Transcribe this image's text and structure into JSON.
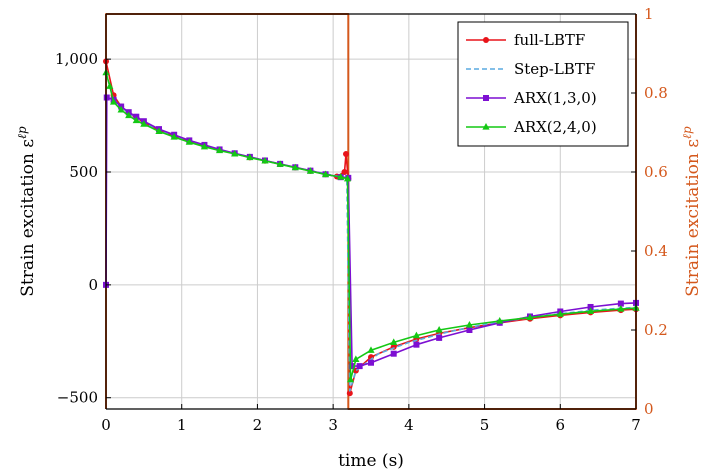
{
  "chart_data": {
    "type": "line",
    "xlabel": "time (s)",
    "ylabel_left": "Strain excitation ε",
    "ylabel_left_sup": "ℓp",
    "ylabel_right": "Strain excitation ε",
    "ylabel_right_sup": "ℓp",
    "xlim": [
      0,
      7
    ],
    "ylim_left": [
      -550,
      1200
    ],
    "ylim_right": [
      0,
      1
    ],
    "x_ticks": [
      0,
      1,
      2,
      3,
      4,
      5,
      6,
      7
    ],
    "x_tick_labels": [
      "0",
      "1",
      "2",
      "3",
      "4",
      "5",
      "6",
      "7"
    ],
    "y_ticks_left": [
      -500,
      0,
      500,
      1000
    ],
    "y_tick_labels_left": [
      "−500",
      "0",
      "500",
      "1,000"
    ],
    "y_ticks_right": [
      0,
      0.2,
      0.4,
      0.6,
      0.8,
      1
    ],
    "y_tick_labels_right": [
      "0",
      "0.2",
      "0.4",
      "0.6",
      "0.8",
      "1"
    ],
    "grid": true,
    "legend_position": "top-right",
    "series": [
      {
        "name": "full-LBTF",
        "color": "#e8141a",
        "marker": "circle",
        "axis": "left",
        "x": [
          0,
          0.1,
          0.2,
          0.3,
          0.4,
          0.5,
          0.7,
          0.9,
          1.1,
          1.3,
          1.5,
          1.7,
          1.9,
          2.1,
          2.3,
          2.5,
          2.7,
          2.9,
          3.05,
          3.15,
          3.17,
          3.2,
          3.22,
          3.3,
          3.5,
          3.8,
          4.1,
          4.4,
          4.8,
          5.2,
          5.6,
          6.0,
          6.4,
          6.8,
          7.0
        ],
        "y": [
          990,
          840,
          790,
          760,
          740,
          720,
          685,
          660,
          635,
          615,
          598,
          582,
          565,
          550,
          535,
          520,
          505,
          490,
          480,
          500,
          580,
          470,
          -480,
          -380,
          -320,
          -275,
          -240,
          -215,
          -190,
          -168,
          -150,
          -135,
          -122,
          -112,
          -108
        ]
      },
      {
        "name": "Step-LBTF",
        "color": "#5aaae0",
        "marker": "none",
        "dashed": true,
        "axis": "left",
        "x": [
          0,
          0.1,
          0.3,
          0.6,
          1.0,
          1.5,
          2.0,
          2.5,
          3.0,
          3.18,
          3.22,
          3.3,
          3.6,
          4.0,
          4.5,
          5.0,
          5.5,
          6.0,
          6.5,
          7.0
        ],
        "y": [
          940,
          820,
          760,
          700,
          650,
          598,
          557,
          520,
          485,
          475,
          -470,
          -380,
          -305,
          -255,
          -210,
          -175,
          -150,
          -128,
          -110,
          -100
        ]
      },
      {
        "name": "ARX(1,3,0)",
        "color": "#7d0fd2",
        "marker": "square",
        "axis": "left",
        "x": [
          0,
          0.01,
          0.1,
          0.2,
          0.3,
          0.4,
          0.5,
          0.7,
          0.9,
          1.1,
          1.3,
          1.5,
          1.7,
          1.9,
          2.1,
          2.3,
          2.5,
          2.7,
          2.9,
          3.1,
          3.2,
          3.25,
          3.35,
          3.5,
          3.8,
          4.1,
          4.4,
          4.8,
          5.2,
          5.6,
          6.0,
          6.4,
          6.8,
          7.0
        ],
        "y": [
          0,
          830,
          820,
          790,
          765,
          745,
          725,
          690,
          665,
          640,
          620,
          600,
          583,
          567,
          551,
          536,
          521,
          506,
          490,
          477,
          474,
          -360,
          -360,
          -345,
          -305,
          -265,
          -235,
          -200,
          -168,
          -140,
          -118,
          -98,
          -83,
          -80
        ]
      },
      {
        "name": "ARX(2,4,0)",
        "color": "#14c814",
        "marker": "triangle",
        "axis": "left",
        "x": [
          0,
          0.05,
          0.1,
          0.2,
          0.3,
          0.4,
          0.5,
          0.7,
          0.9,
          1.1,
          1.3,
          1.5,
          1.7,
          1.9,
          2.1,
          2.3,
          2.5,
          2.7,
          2.9,
          3.1,
          3.19,
          3.23,
          3.3,
          3.5,
          3.8,
          4.1,
          4.4,
          4.8,
          5.2,
          5.6,
          6.0,
          6.4,
          6.8,
          7.0
        ],
        "y": [
          940,
          880,
          810,
          775,
          750,
          728,
          712,
          680,
          655,
          632,
          612,
          595,
          580,
          564,
          549,
          534,
          519,
          504,
          489,
          478,
          470,
          -420,
          -330,
          -290,
          -255,
          -225,
          -200,
          -178,
          -160,
          -145,
          -130,
          -117,
          -107,
          -103
        ]
      },
      {
        "name": "",
        "color": "#d4581c",
        "marker": "none",
        "axis": "right",
        "x": [
          0,
          0,
          3.2,
          3.2,
          7,
          7
        ],
        "y": [
          0,
          1,
          1,
          0,
          0,
          1
        ]
      }
    ]
  }
}
